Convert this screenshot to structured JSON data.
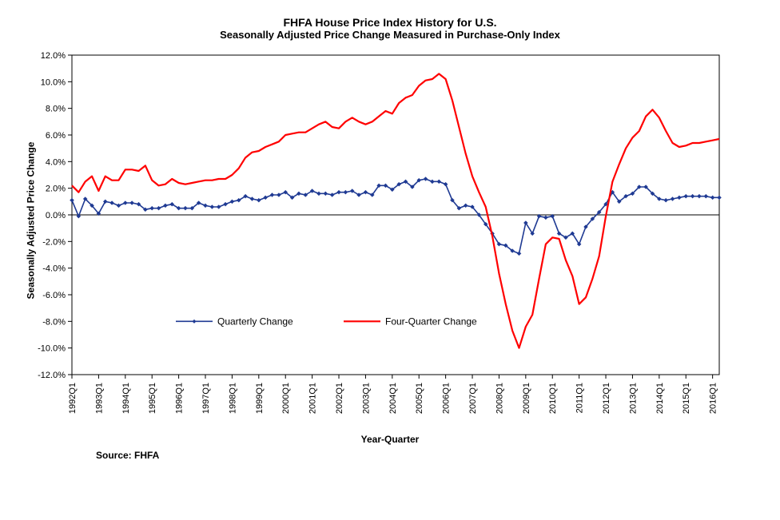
{
  "chart": {
    "type": "line",
    "title": "FHFA House Price Index History for U.S.",
    "subtitle": "Seasonally Adjusted Price Change Measured in Purchase-Only Index",
    "y_axis_label": "Seasonally Adjusted Price Change",
    "x_axis_label": "Year-Quarter",
    "source_label": "Source:  FHFA",
    "background_color": "#ffffff",
    "axis_color": "#000000",
    "grid_color": "#000000",
    "ylim": [
      -12,
      12
    ],
    "ytick_step": 2,
    "y_ticks": [
      "-12.0%",
      "-10.0%",
      "-8.0%",
      "-6.0%",
      "-4.0%",
      "-2.0%",
      "0.0%",
      "2.0%",
      "4.0%",
      "6.0%",
      "8.0%",
      "10.0%",
      "12.0%"
    ],
    "x_categories": [
      "1992Q1",
      "1992Q2",
      "1992Q3",
      "1992Q4",
      "1993Q1",
      "1993Q2",
      "1993Q3",
      "1993Q4",
      "1994Q1",
      "1994Q2",
      "1994Q3",
      "1994Q4",
      "1995Q1",
      "1995Q2",
      "1995Q3",
      "1995Q4",
      "1996Q1",
      "1996Q2",
      "1996Q3",
      "1996Q4",
      "1997Q1",
      "1997Q2",
      "1997Q3",
      "1997Q4",
      "1998Q1",
      "1998Q2",
      "1998Q3",
      "1998Q4",
      "1999Q1",
      "1999Q2",
      "1999Q3",
      "1999Q4",
      "2000Q1",
      "2000Q2",
      "2000Q3",
      "2000Q4",
      "2001Q1",
      "2001Q2",
      "2001Q3",
      "2001Q4",
      "2002Q1",
      "2002Q2",
      "2002Q3",
      "2002Q4",
      "2003Q1",
      "2003Q2",
      "2003Q3",
      "2003Q4",
      "2004Q1",
      "2004Q2",
      "2004Q3",
      "2004Q4",
      "2005Q1",
      "2005Q2",
      "2005Q3",
      "2005Q4",
      "2006Q1",
      "2006Q2",
      "2006Q3",
      "2006Q4",
      "2007Q1",
      "2007Q2",
      "2007Q3",
      "2007Q4",
      "2008Q1",
      "2008Q2",
      "2008Q3",
      "2008Q4",
      "2009Q1",
      "2009Q2",
      "2009Q3",
      "2009Q4",
      "2010Q1",
      "2010Q2",
      "2010Q3",
      "2010Q4",
      "2011Q1",
      "2011Q2",
      "2011Q3",
      "2011Q4",
      "2012Q1",
      "2012Q2",
      "2012Q3",
      "2012Q4",
      "2013Q1",
      "2013Q2",
      "2013Q3",
      "2013Q4",
      "2014Q1",
      "2014Q2",
      "2014Q3",
      "2014Q4",
      "2015Q1",
      "2015Q2",
      "2015Q3",
      "2015Q4",
      "2016Q1",
      "2016Q2"
    ],
    "x_tick_labels": [
      "1992Q1",
      "1993Q1",
      "1994Q1",
      "1995Q1",
      "1996Q1",
      "1997Q1",
      "1998Q1",
      "1999Q1",
      "2000Q1",
      "2001Q1",
      "2002Q1",
      "2003Q1",
      "2004Q1",
      "2005Q1",
      "2006Q1",
      "2007Q1",
      "2008Q1",
      "2009Q1",
      "2010Q1",
      "2011Q1",
      "2012Q1",
      "2013Q1",
      "2014Q1",
      "2015Q1",
      "2016Q1"
    ],
    "series": [
      {
        "name": "Quarterly Change",
        "color": "#1f3a93",
        "line_width": 1.6,
        "marker": "diamond",
        "marker_size": 5,
        "values": [
          1.1,
          -0.1,
          1.2,
          0.7,
          0.1,
          1.0,
          0.9,
          0.7,
          0.9,
          0.9,
          0.8,
          0.4,
          0.5,
          0.5,
          0.7,
          0.8,
          0.5,
          0.5,
          0.5,
          0.9,
          0.7,
          0.6,
          0.6,
          0.8,
          1.0,
          1.1,
          1.4,
          1.2,
          1.1,
          1.3,
          1.5,
          1.5,
          1.7,
          1.3,
          1.6,
          1.5,
          1.8,
          1.6,
          1.6,
          1.5,
          1.7,
          1.7,
          1.8,
          1.5,
          1.7,
          1.5,
          2.2,
          2.2,
          1.9,
          2.3,
          2.5,
          2.1,
          2.6,
          2.7,
          2.5,
          2.5,
          2.3,
          1.1,
          0.5,
          0.7,
          0.6,
          0.0,
          -0.7,
          -1.4,
          -2.2,
          -2.3,
          -2.7,
          -2.9,
          -0.6,
          -1.4,
          -0.1,
          -0.2,
          -0.1,
          -1.4,
          -1.7,
          -1.4,
          -2.2,
          -0.9,
          -0.3,
          0.2,
          0.8,
          1.7,
          1.0,
          1.4,
          1.6,
          2.1,
          2.1,
          1.6,
          1.2,
          1.1,
          1.2,
          1.3,
          1.4,
          1.4,
          1.4,
          1.4,
          1.3,
          1.3
        ]
      },
      {
        "name": "Four-Quarter Change",
        "color": "#ff0000",
        "line_width": 2.2,
        "marker": "none",
        "values": [
          2.2,
          1.7,
          2.5,
          2.9,
          1.8,
          2.9,
          2.6,
          2.6,
          3.4,
          3.4,
          3.3,
          3.7,
          2.6,
          2.2,
          2.3,
          2.7,
          2.4,
          2.3,
          2.4,
          2.5,
          2.6,
          2.6,
          2.7,
          2.7,
          3.0,
          3.5,
          4.3,
          4.7,
          4.8,
          5.1,
          5.3,
          5.5,
          6.0,
          6.1,
          6.2,
          6.2,
          6.5,
          6.8,
          7.0,
          6.6,
          6.5,
          7.0,
          7.3,
          7.0,
          6.8,
          7.0,
          7.4,
          7.8,
          7.6,
          8.4,
          8.8,
          9.0,
          9.7,
          10.1,
          10.2,
          10.6,
          10.2,
          8.6,
          6.6,
          4.6,
          2.9,
          1.7,
          0.6,
          -1.6,
          -4.4,
          -6.7,
          -8.7,
          -10.0,
          -8.4,
          -7.5,
          -4.8,
          -2.2,
          -1.7,
          -1.8,
          -3.4,
          -4.6,
          -6.7,
          -6.2,
          -4.8,
          -3.1,
          -0.1,
          2.5,
          3.8,
          5.0,
          5.8,
          6.3,
          7.4,
          7.9,
          7.3,
          6.3,
          5.4,
          5.1,
          5.2,
          5.4,
          5.4,
          5.5,
          5.6,
          5.7
        ]
      }
    ],
    "legend": {
      "position": "bottom-inside",
      "items": [
        "Quarterly Change",
        "Four-Quarter Change"
      ]
    },
    "title_fontsize": 14,
    "subtitle_fontsize": 13,
    "axis_label_fontsize": 12,
    "tick_fontsize": 11,
    "legend_fontsize": 12
  }
}
